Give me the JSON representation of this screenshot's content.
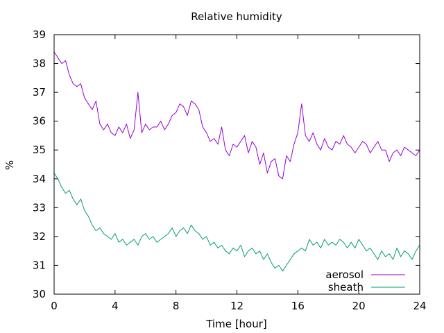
{
  "chart_data": {
    "type": "line",
    "title": "Relative humidity",
    "xlabel": "Time [hour]",
    "ylabel": "%",
    "xlim": [
      0,
      24
    ],
    "ylim": [
      30,
      39
    ],
    "xticks": [
      0,
      4,
      8,
      12,
      16,
      20,
      24
    ],
    "yticks": [
      30,
      31,
      32,
      33,
      34,
      35,
      36,
      37,
      38,
      39
    ],
    "grid": false,
    "legend_position": "bottom-right",
    "series": [
      {
        "name": "aerosol",
        "color": "#9400d3",
        "x": [
          0,
          0.25,
          0.5,
          0.75,
          1,
          1.25,
          1.5,
          1.75,
          2,
          2.25,
          2.5,
          2.75,
          3,
          3.25,
          3.5,
          3.75,
          4,
          4.25,
          4.5,
          4.75,
          5,
          5.25,
          5.5,
          5.75,
          6,
          6.25,
          6.5,
          6.75,
          7,
          7.25,
          7.5,
          7.75,
          8,
          8.25,
          8.5,
          8.75,
          9,
          9.25,
          9.5,
          9.75,
          10,
          10.25,
          10.5,
          10.75,
          11,
          11.25,
          11.5,
          11.75,
          12,
          12.25,
          12.5,
          12.75,
          13,
          13.25,
          13.5,
          13.75,
          14,
          14.25,
          14.5,
          14.75,
          15,
          15.25,
          15.5,
          15.75,
          16,
          16.25,
          16.5,
          16.75,
          17,
          17.25,
          17.5,
          17.75,
          18,
          18.25,
          18.5,
          18.75,
          19,
          19.25,
          19.5,
          19.75,
          20,
          20.25,
          20.5,
          20.75,
          21,
          21.25,
          21.5,
          21.75,
          22,
          22.25,
          22.5,
          22.75,
          23,
          23.25,
          23.5,
          23.75,
          24
        ],
        "y": [
          38.4,
          38.2,
          38.0,
          38.1,
          37.6,
          37.3,
          37.2,
          37.3,
          36.8,
          36.6,
          36.4,
          36.7,
          35.9,
          35.7,
          35.9,
          35.6,
          35.5,
          35.8,
          35.6,
          35.9,
          35.4,
          35.7,
          37.0,
          35.6,
          35.9,
          35.7,
          35.8,
          35.8,
          36.0,
          35.7,
          35.9,
          36.2,
          36.3,
          36.6,
          36.5,
          36.2,
          36.7,
          36.6,
          36.4,
          35.8,
          35.6,
          35.3,
          35.4,
          35.2,
          35.8,
          35.0,
          34.8,
          35.2,
          35.1,
          35.3,
          35.5,
          34.9,
          35.3,
          35.1,
          34.5,
          34.9,
          34.2,
          34.6,
          34.7,
          34.1,
          34.0,
          34.8,
          34.6,
          35.2,
          35.6,
          36.6,
          35.5,
          35.3,
          35.6,
          35.2,
          35.0,
          35.4,
          35.1,
          35.0,
          35.3,
          35.2,
          35.5,
          35.2,
          35.1,
          34.9,
          35.1,
          35.3,
          35.2,
          34.9,
          35.1,
          35.3,
          35.0,
          35.0,
          34.6,
          34.9,
          35.0,
          34.8,
          35.1,
          35.0,
          34.9,
          34.8,
          35.0
        ]
      },
      {
        "name": "sheath",
        "color": "#009e73",
        "x": [
          0,
          0.25,
          0.5,
          0.75,
          1,
          1.25,
          1.5,
          1.75,
          2,
          2.25,
          2.5,
          2.75,
          3,
          3.25,
          3.5,
          3.75,
          4,
          4.25,
          4.5,
          4.75,
          5,
          5.25,
          5.5,
          5.75,
          6,
          6.25,
          6.5,
          6.75,
          7,
          7.25,
          7.5,
          7.75,
          8,
          8.25,
          8.5,
          8.75,
          9,
          9.25,
          9.5,
          9.75,
          10,
          10.25,
          10.5,
          10.75,
          11,
          11.25,
          11.5,
          11.75,
          12,
          12.25,
          12.5,
          12.75,
          13,
          13.25,
          13.5,
          13.75,
          14,
          14.25,
          14.5,
          14.75,
          15,
          15.25,
          15.5,
          15.75,
          16,
          16.25,
          16.5,
          16.75,
          17,
          17.25,
          17.5,
          17.75,
          18,
          18.25,
          18.5,
          18.75,
          19,
          19.25,
          19.5,
          19.75,
          20,
          20.25,
          20.5,
          20.75,
          21,
          21.25,
          21.5,
          21.75,
          22,
          22.25,
          22.5,
          22.75,
          23,
          23.25,
          23.5,
          23.75,
          24
        ],
        "y": [
          34.2,
          34.0,
          33.7,
          33.5,
          33.6,
          33.3,
          33.1,
          33.3,
          32.9,
          32.7,
          32.4,
          32.2,
          32.3,
          32.1,
          32.0,
          31.9,
          32.1,
          31.8,
          31.9,
          31.7,
          31.8,
          31.9,
          31.7,
          32.0,
          32.1,
          31.9,
          32.0,
          31.8,
          31.9,
          32.0,
          32.1,
          32.3,
          32.0,
          32.2,
          32.3,
          32.1,
          32.4,
          32.2,
          32.1,
          31.9,
          32.0,
          31.7,
          31.8,
          31.6,
          31.7,
          31.5,
          31.4,
          31.6,
          31.5,
          31.7,
          31.3,
          31.5,
          31.6,
          31.4,
          31.5,
          31.2,
          31.4,
          31.1,
          30.9,
          31.0,
          30.8,
          31.0,
          31.2,
          31.4,
          31.5,
          31.6,
          31.5,
          31.9,
          31.7,
          31.8,
          31.6,
          31.9,
          31.7,
          31.8,
          31.7,
          31.9,
          31.8,
          31.6,
          31.8,
          31.6,
          31.9,
          31.7,
          31.5,
          31.6,
          31.4,
          31.2,
          31.5,
          31.3,
          31.4,
          31.2,
          31.6,
          31.3,
          31.5,
          31.4,
          31.2,
          31.5,
          31.7
        ]
      }
    ]
  }
}
